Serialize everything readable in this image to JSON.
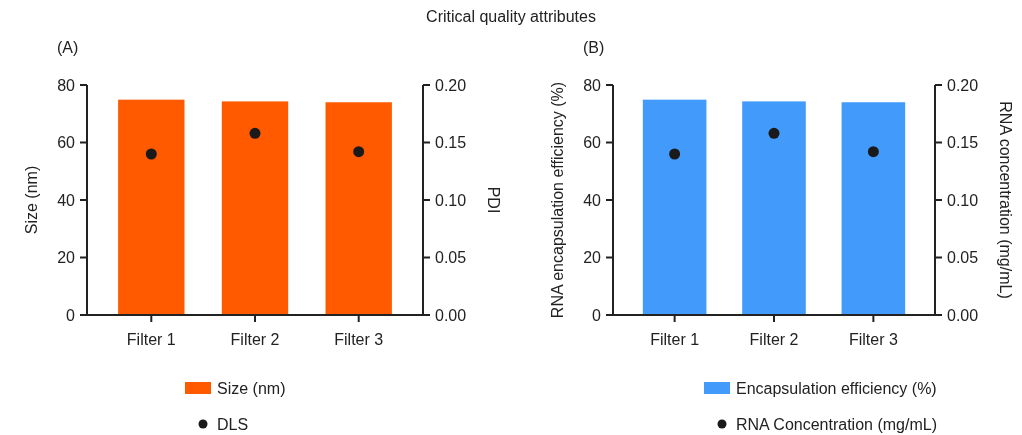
{
  "chart_data": [
    {
      "type": "bar",
      "title": "Critical quality attributes",
      "annotations": [
        "(A)"
      ],
      "categories": [
        "Filter 1",
        "Filter 2",
        "Filter 3"
      ],
      "ylabel": "Size (nm)",
      "y2label": "PDI",
      "ylim": [
        0,
        80
      ],
      "yticks": [
        0,
        20,
        40,
        60,
        80
      ],
      "y2lim": [
        0,
        0.2
      ],
      "y2ticks": [
        {
          "value": 0,
          "label": "0.00"
        },
        {
          "value": 0.05,
          "label": "0.05"
        },
        {
          "value": 0.1,
          "label": "0.10"
        },
        {
          "value": 0.15,
          "label": "0.15"
        },
        {
          "value": 0.2,
          "label": "0.20"
        }
      ],
      "legend": "bottom",
      "grid": false,
      "series": [
        {
          "name": "Size (nm)",
          "color": "#ff5a00",
          "values": [
            74.9,
            74.3,
            74.0
          ]
        },
        {
          "name": "DLS",
          "type": "scatter",
          "axis": "y2",
          "marker": "circle",
          "color": "#1a1a1a",
          "values": [
            0.14,
            0.158,
            0.142
          ]
        }
      ]
    },
    {
      "type": "bar",
      "annotations": [
        "(B)"
      ],
      "categories": [
        "Filter 1",
        "Filter 2",
        "Filter 3"
      ],
      "ylabel": "RNA encapsulation efficiency (%)",
      "y2label": "RNA concentration (mg/mL)",
      "ylim": [
        0,
        80
      ],
      "yticks": [
        0,
        20,
        40,
        60,
        80
      ],
      "y2lim": [
        0,
        0.2
      ],
      "y2ticks": [
        {
          "value": 0,
          "label": "0.00"
        },
        {
          "value": 0.05,
          "label": "0.05"
        },
        {
          "value": 0.1,
          "label": "0.10"
        },
        {
          "value": 0.15,
          "label": "0.15"
        },
        {
          "value": 0.2,
          "label": "0.20"
        }
      ],
      "legend": "bottom",
      "grid": false,
      "series": [
        {
          "name": "Encapsulation efficiency (%)",
          "color": "#429bfb",
          "values": [
            74.9,
            74.3,
            74.0
          ]
        },
        {
          "name": "RNA Concentration (mg/mL)",
          "type": "scatter",
          "axis": "y2",
          "marker": "circle",
          "color": "#1a1a1a",
          "values": [
            0.14,
            0.158,
            0.142
          ]
        }
      ]
    }
  ]
}
